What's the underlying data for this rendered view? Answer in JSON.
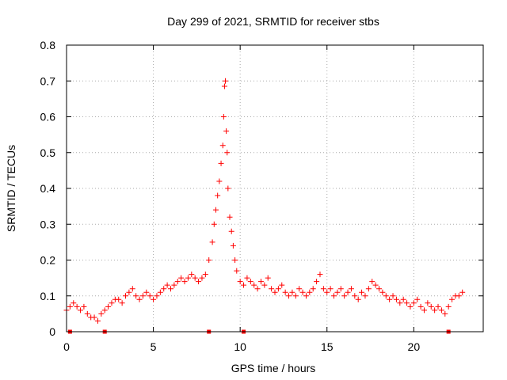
{
  "chart_data": {
    "type": "scatter",
    "title": "Day 299 of 2021, SRMTID for receiver stbs",
    "xlabel": "GPS time / hours",
    "ylabel": "SRMTID / TECUs",
    "xlim": [
      0,
      24
    ],
    "ylim": [
      0,
      0.8
    ],
    "xticks": [
      0,
      5,
      10,
      15,
      20
    ],
    "yticks": [
      0,
      0.1,
      0.2,
      0.3,
      0.4,
      0.5,
      0.6,
      0.7,
      0.8
    ],
    "x_tick_labels": [
      "0",
      "5",
      "10",
      "15",
      "20"
    ],
    "y_tick_labels": [
      "0",
      "0.1",
      "0.2",
      "0.3",
      "0.4",
      "0.5",
      "0.6",
      "0.7",
      "0.8"
    ],
    "grid": true,
    "marker": "+",
    "color": "#ff0000",
    "series": [
      {
        "name": "SRMTID",
        "x": [
          0.0,
          0.2,
          0.4,
          0.6,
          0.8,
          1.0,
          1.2,
          1.4,
          1.6,
          1.8,
          2.0,
          2.2,
          2.4,
          2.6,
          2.8,
          3.0,
          3.2,
          3.4,
          3.6,
          3.8,
          4.0,
          4.2,
          4.4,
          4.6,
          4.8,
          5.0,
          5.2,
          5.4,
          5.6,
          5.8,
          6.0,
          6.2,
          6.4,
          6.6,
          6.8,
          7.0,
          7.2,
          7.4,
          7.6,
          7.8,
          8.0,
          8.2,
          8.4,
          8.5,
          8.6,
          8.7,
          8.8,
          8.9,
          9.0,
          9.05,
          9.1,
          9.15,
          9.2,
          9.25,
          9.3,
          9.4,
          9.5,
          9.6,
          9.7,
          9.8,
          10.0,
          10.2,
          10.4,
          10.6,
          10.8,
          11.0,
          11.2,
          11.4,
          11.6,
          11.8,
          12.0,
          12.2,
          12.4,
          12.6,
          12.8,
          13.0,
          13.2,
          13.4,
          13.6,
          13.8,
          14.0,
          14.2,
          14.4,
          14.6,
          14.8,
          15.0,
          15.2,
          15.4,
          15.6,
          15.8,
          16.0,
          16.2,
          16.4,
          16.6,
          16.8,
          17.0,
          17.2,
          17.4,
          17.6,
          17.8,
          18.0,
          18.2,
          18.4,
          18.6,
          18.8,
          19.0,
          19.2,
          19.4,
          19.6,
          19.8,
          20.0,
          20.2,
          20.4,
          20.6,
          20.8,
          21.0,
          21.2,
          21.4,
          21.6,
          21.8,
          22.0,
          22.2,
          22.4,
          22.6,
          22.8
        ],
        "y": [
          0.06,
          0.07,
          0.08,
          0.07,
          0.06,
          0.07,
          0.05,
          0.04,
          0.04,
          0.03,
          0.05,
          0.06,
          0.07,
          0.08,
          0.09,
          0.09,
          0.08,
          0.1,
          0.11,
          0.12,
          0.1,
          0.09,
          0.1,
          0.11,
          0.1,
          0.09,
          0.1,
          0.11,
          0.12,
          0.13,
          0.12,
          0.13,
          0.14,
          0.15,
          0.14,
          0.15,
          0.16,
          0.15,
          0.14,
          0.15,
          0.16,
          0.2,
          0.25,
          0.3,
          0.34,
          0.38,
          0.42,
          0.47,
          0.52,
          0.6,
          0.685,
          0.7,
          0.56,
          0.5,
          0.4,
          0.32,
          0.28,
          0.24,
          0.2,
          0.17,
          0.14,
          0.13,
          0.15,
          0.14,
          0.13,
          0.12,
          0.14,
          0.13,
          0.15,
          0.12,
          0.11,
          0.12,
          0.13,
          0.11,
          0.1,
          0.11,
          0.1,
          0.12,
          0.11,
          0.1,
          0.11,
          0.12,
          0.14,
          0.16,
          0.12,
          0.11,
          0.12,
          0.1,
          0.11,
          0.12,
          0.1,
          0.11,
          0.12,
          0.1,
          0.09,
          0.11,
          0.1,
          0.12,
          0.14,
          0.13,
          0.12,
          0.11,
          0.1,
          0.09,
          0.1,
          0.09,
          0.08,
          0.09,
          0.08,
          0.07,
          0.08,
          0.09,
          0.07,
          0.06,
          0.08,
          0.07,
          0.06,
          0.07,
          0.06,
          0.05,
          0.07,
          0.09,
          0.1,
          0.1,
          0.11
        ]
      }
    ]
  }
}
